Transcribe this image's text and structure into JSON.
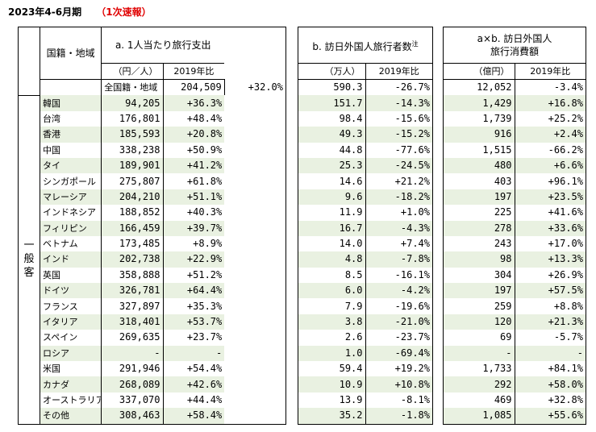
{
  "title": {
    "period": "2023年4-6月期",
    "status": "（1次速報）"
  },
  "headers": {
    "region": "国籍・地域",
    "a_title": "a. 1人当たり旅行支出",
    "a_unit": "（円／人）",
    "a_ratio": "2019年比",
    "b_title": "b. 訪日外国人旅行者数",
    "b_note": "注",
    "b_unit": "（万人）",
    "b_ratio": "2019年比",
    "ab_title_line1": "a×b. 訪日外国人",
    "ab_title_line2": "旅行消費額",
    "ab_unit": "（億円）",
    "ab_ratio": "2019年比",
    "side_label": "一般客"
  },
  "rows": [
    {
      "name": "全国籍・地域",
      "a": "204,509",
      "a_ratio": "+32.0%",
      "b": "590.3",
      "b_ratio": "-26.7%",
      "ab": "12,052",
      "ab_ratio": "-3.4%"
    },
    {
      "name": "韓国",
      "a": "94,205",
      "a_ratio": "+36.3%",
      "b": "151.7",
      "b_ratio": "-14.3%",
      "ab": "1,429",
      "ab_ratio": "+16.8%"
    },
    {
      "name": "台湾",
      "a": "176,801",
      "a_ratio": "+48.4%",
      "b": "98.4",
      "b_ratio": "-15.6%",
      "ab": "1,739",
      "ab_ratio": "+25.2%"
    },
    {
      "name": "香港",
      "a": "185,593",
      "a_ratio": "+20.8%",
      "b": "49.3",
      "b_ratio": "-15.2%",
      "ab": "916",
      "ab_ratio": "+2.4%"
    },
    {
      "name": "中国",
      "a": "338,238",
      "a_ratio": "+50.9%",
      "b": "44.8",
      "b_ratio": "-77.6%",
      "ab": "1,515",
      "ab_ratio": "-66.2%"
    },
    {
      "name": "タイ",
      "a": "189,901",
      "a_ratio": "+41.2%",
      "b": "25.3",
      "b_ratio": "-24.5%",
      "ab": "480",
      "ab_ratio": "+6.6%"
    },
    {
      "name": "シンガポール",
      "a": "275,807",
      "a_ratio": "+61.8%",
      "b": "14.6",
      "b_ratio": "+21.2%",
      "ab": "403",
      "ab_ratio": "+96.1%"
    },
    {
      "name": "マレーシア",
      "a": "204,210",
      "a_ratio": "+51.1%",
      "b": "9.6",
      "b_ratio": "-18.2%",
      "ab": "197",
      "ab_ratio": "+23.5%"
    },
    {
      "name": "インドネシア",
      "a": "188,852",
      "a_ratio": "+40.3%",
      "b": "11.9",
      "b_ratio": "+1.0%",
      "ab": "225",
      "ab_ratio": "+41.6%"
    },
    {
      "name": "フィリピン",
      "a": "166,459",
      "a_ratio": "+39.7%",
      "b": "16.7",
      "b_ratio": "-4.3%",
      "ab": "278",
      "ab_ratio": "+33.6%"
    },
    {
      "name": "ベトナム",
      "a": "173,485",
      "a_ratio": "+8.9%",
      "b": "14.0",
      "b_ratio": "+7.4%",
      "ab": "243",
      "ab_ratio": "+17.0%"
    },
    {
      "name": "インド",
      "a": "202,738",
      "a_ratio": "+22.9%",
      "b": "4.8",
      "b_ratio": "-7.8%",
      "ab": "98",
      "ab_ratio": "+13.3%"
    },
    {
      "name": "英国",
      "a": "358,888",
      "a_ratio": "+51.2%",
      "b": "8.5",
      "b_ratio": "-16.1%",
      "ab": "304",
      "ab_ratio": "+26.9%"
    },
    {
      "name": "ドイツ",
      "a": "326,781",
      "a_ratio": "+64.4%",
      "b": "6.0",
      "b_ratio": "-4.2%",
      "ab": "197",
      "ab_ratio": "+57.5%"
    },
    {
      "name": "フランス",
      "a": "327,897",
      "a_ratio": "+35.3%",
      "b": "7.9",
      "b_ratio": "-19.6%",
      "ab": "259",
      "ab_ratio": "+8.8%"
    },
    {
      "name": "イタリア",
      "a": "318,401",
      "a_ratio": "+53.7%",
      "b": "3.8",
      "b_ratio": "-21.0%",
      "ab": "120",
      "ab_ratio": "+21.3%"
    },
    {
      "name": "スペイン",
      "a": "269,635",
      "a_ratio": "+23.7%",
      "b": "2.6",
      "b_ratio": "-23.7%",
      "ab": "69",
      "ab_ratio": "-5.7%"
    },
    {
      "name": "ロシア",
      "a": "-",
      "a_ratio": "-",
      "b": "1.0",
      "b_ratio": "-69.4%",
      "ab": "-",
      "ab_ratio": "-"
    },
    {
      "name": "米国",
      "a": "291,946",
      "a_ratio": "+54.4%",
      "b": "59.4",
      "b_ratio": "+19.2%",
      "ab": "1,733",
      "ab_ratio": "+84.1%"
    },
    {
      "name": "カナダ",
      "a": "268,089",
      "a_ratio": "+42.6%",
      "b": "10.9",
      "b_ratio": "+10.8%",
      "ab": "292",
      "ab_ratio": "+58.0%"
    },
    {
      "name": "オーストラリア",
      "a": "337,070",
      "a_ratio": "+44.4%",
      "b": "13.9",
      "b_ratio": "-8.1%",
      "ab": "469",
      "ab_ratio": "+32.8%"
    },
    {
      "name": "その他",
      "a": "308,463",
      "a_ratio": "+58.4%",
      "b": "35.2",
      "b_ratio": "-1.8%",
      "ab": "1,085",
      "ab_ratio": "+55.6%"
    }
  ],
  "colors": {
    "shade": "#e9f1e1",
    "status": "#e00000",
    "border": "#000000"
  }
}
